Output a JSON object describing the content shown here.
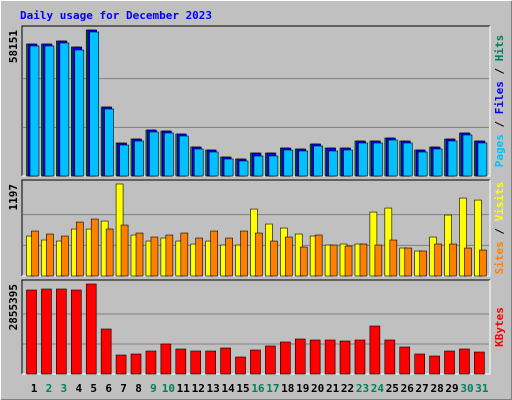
{
  "title": "Daily usage for December 2023",
  "legend_separator": "/",
  "chart_data": [
    {
      "type": "bar",
      "ylim": [
        0,
        58151
      ],
      "yticks": [
        58151
      ],
      "series": [
        {
          "name": "Hits",
          "color": "#00805c",
          "values": [
            52576,
            52576,
            53770,
            51381,
            58151,
            27483,
            13144,
            14737,
            18322,
            17924,
            16729,
            11551,
            10356,
            7568,
            6771,
            9161,
            9161,
            11152,
            10754,
            12746,
            11152,
            11152,
            13941,
            13941,
            15135,
            13941,
            10356,
            11551,
            14737,
            17127,
            13941
          ]
        },
        {
          "name": "Files",
          "color": "#0000ff",
          "values": [
            52576,
            52576,
            53770,
            51381,
            58151,
            27483,
            13144,
            14737,
            18322,
            17924,
            16729,
            11551,
            10356,
            7568,
            6771,
            9161,
            9161,
            11152,
            10754,
            12746,
            11152,
            11152,
            13941,
            13941,
            15135,
            13941,
            10356,
            11551,
            14737,
            17127,
            13941
          ]
        },
        {
          "name": "Pages",
          "color": "#00c0ff",
          "values": [
            51779,
            51779,
            52974,
            50186,
            57355,
            26686,
            12347,
            13940,
            17525,
            17127,
            15932,
            10754,
            9559,
            6771,
            5975,
            7966,
            7966,
            10356,
            9958,
            11949,
            9958,
            10356,
            13144,
            13144,
            14339,
            13144,
            9559,
            10754,
            13940,
            16331,
            13144
          ]
        }
      ]
    },
    {
      "type": "bar",
      "ylim": [
        0,
        1197
      ],
      "yticks": [
        1197
      ],
      "series": [
        {
          "name": "Visits",
          "color": "#ffff00",
          "values": [
            520,
            468,
            455,
            611,
            611,
            715,
            1197,
            533,
            455,
            494,
            455,
            416,
            455,
            403,
            403,
            871,
            676,
            624,
            546,
            520,
            403,
            416,
            416,
            832,
            884,
            364,
            325,
            507,
            793,
            1014,
            988
          ]
        },
        {
          "name": "Sites",
          "color": "#ff8000",
          "values": [
            585,
            546,
            520,
            702,
            741,
            611,
            663,
            559,
            507,
            533,
            559,
            494,
            585,
            494,
            585,
            559,
            455,
            507,
            377,
            533,
            403,
            390,
            416,
            403,
            468,
            364,
            325,
            416,
            416,
            364,
            338
          ]
        }
      ]
    },
    {
      "type": "bar",
      "ylim": [
        0,
        2855395
      ],
      "yticks": [
        2855395
      ],
      "categories": [
        "1",
        "2",
        "3",
        "4",
        "5",
        "6",
        "7",
        "8",
        "9",
        "10",
        "11",
        "12",
        "13",
        "14",
        "15",
        "16",
        "17",
        "18",
        "19",
        "20",
        "21",
        "22",
        "23",
        "24",
        "25",
        "26",
        "27",
        "28",
        "29",
        "30",
        "31"
      ],
      "category_colors": [
        "#000000",
        "#00805c",
        "#00805c",
        "#000000",
        "#000000",
        "#000000",
        "#000000",
        "#000000",
        "#00805c",
        "#00805c",
        "#000000",
        "#000000",
        "#000000",
        "#000000",
        "#000000",
        "#00805c",
        "#00805c",
        "#000000",
        "#000000",
        "#000000",
        "#000000",
        "#000000",
        "#00805c",
        "#00805c",
        "#000000",
        "#000000",
        "#000000",
        "#000000",
        "#000000",
        "#00805c",
        "#00805c"
      ],
      "series": [
        {
          "name": "KBytes",
          "color": "#ff0000",
          "values": [
            2665072,
            2696800,
            2696800,
            2665072,
            2855395,
            1427710,
            602816,
            634544,
            729727,
            951798,
            793165,
            729727,
            729727,
            824911,
            539373,
            761438,
            888362,
            1015270,
            1110445,
            1078718,
            1078718,
            1046991,
            1078718,
            1522891,
            1078718,
            856638,
            634544,
            571086,
            729727,
            793165,
            698000
          ]
        }
      ]
    }
  ]
}
